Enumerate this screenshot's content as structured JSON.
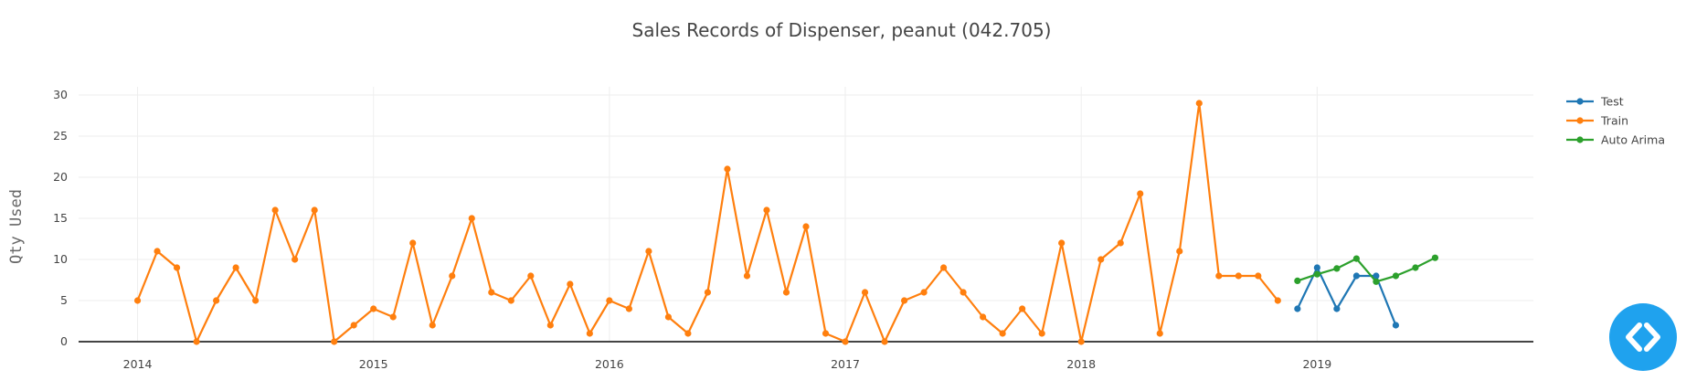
{
  "chart_data": {
    "type": "line",
    "title": "Sales Records of Dispenser, peanut  (042.705)",
    "xlabel": "",
    "ylabel": "Qty  Used",
    "xlim": [
      "2013-10-01",
      "2019-12-01"
    ],
    "ylim": [
      0,
      31
    ],
    "yticks": [
      0,
      5,
      10,
      15,
      20,
      25,
      30
    ],
    "xticks": [
      "2014",
      "2015",
      "2016",
      "2017",
      "2018",
      "2019"
    ],
    "grid": true,
    "legend_position": "top-right",
    "series": [
      {
        "name": "Test",
        "color": "#1f77b4",
        "x": [
          "2018-12",
          "2019-01",
          "2019-02",
          "2019-03",
          "2019-04",
          "2019-05"
        ],
        "y": [
          4,
          9,
          4,
          8,
          8,
          2
        ]
      },
      {
        "name": "Train",
        "color": "#ff7f0e",
        "x": [
          "2014-01",
          "2014-02",
          "2014-03",
          "2014-04",
          "2014-05",
          "2014-06",
          "2014-07",
          "2014-08",
          "2014-09",
          "2014-10",
          "2014-11",
          "2014-12",
          "2015-01",
          "2015-02",
          "2015-03",
          "2015-04",
          "2015-05",
          "2015-06",
          "2015-07",
          "2015-08",
          "2015-09",
          "2015-10",
          "2015-11",
          "2015-12",
          "2016-01",
          "2016-02",
          "2016-03",
          "2016-04",
          "2016-05",
          "2016-06",
          "2016-07",
          "2016-08",
          "2016-09",
          "2016-10",
          "2016-11",
          "2016-12",
          "2017-01",
          "2017-02",
          "2017-03",
          "2017-04",
          "2017-05",
          "2017-06",
          "2017-07",
          "2017-08",
          "2017-09",
          "2017-10",
          "2017-11",
          "2017-12",
          "2018-01",
          "2018-02",
          "2018-03",
          "2018-04",
          "2018-05",
          "2018-06",
          "2018-07",
          "2018-08",
          "2018-09",
          "2018-10",
          "2018-11"
        ],
        "y": [
          5,
          11,
          9,
          0,
          5,
          9,
          5,
          16,
          10,
          16,
          0,
          2,
          4,
          3,
          12,
          2,
          8,
          15,
          6,
          5,
          8,
          2,
          7,
          1,
          5,
          4,
          11,
          3,
          1,
          6,
          21,
          8,
          16,
          6,
          14,
          1,
          0,
          6,
          0,
          5,
          6,
          9,
          6,
          3,
          1,
          4,
          1,
          12,
          0,
          10,
          12,
          18,
          1,
          11,
          29,
          8,
          8,
          8,
          5
        ]
      },
      {
        "name": "Auto Arima",
        "color": "#2ca02c",
        "x": [
          "2018-12",
          "2019-01",
          "2019-02",
          "2019-03",
          "2019-04",
          "2019-05",
          "2019-06",
          "2019-07"
        ],
        "y": [
          7.4,
          8.2,
          8.9,
          10.1,
          7.3,
          8.0,
          9.0,
          10.2
        ]
      }
    ]
  },
  "embed_button": {
    "icon": "code-brackets-icon",
    "color": "#1fa2ee"
  }
}
